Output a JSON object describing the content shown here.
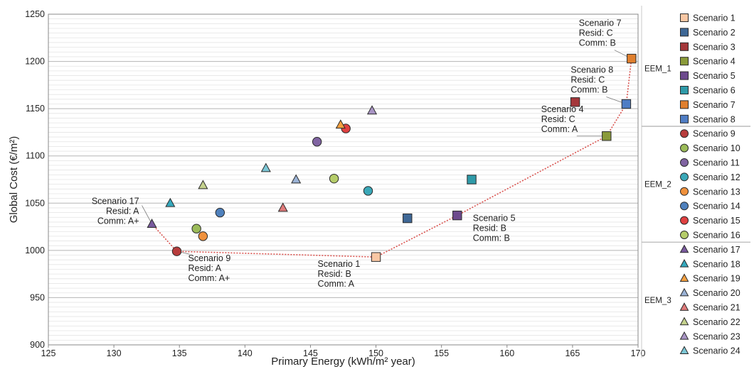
{
  "chart_data": {
    "type": "scatter",
    "xlabel": "Primary Energy (kWh/m² year)",
    "ylabel": "Global Cost (€/m²)",
    "xlim": [
      125,
      170
    ],
    "ylim": [
      900,
      1250
    ],
    "x_ticks": [
      125,
      130,
      135,
      140,
      145,
      150,
      155,
      160,
      165,
      170
    ],
    "y_ticks": [
      900,
      950,
      1000,
      1050,
      1100,
      1150,
      1200,
      1250
    ],
    "grid": true,
    "legend_position": "right",
    "series": [
      {
        "name": "Scenario  1",
        "group": "EEM_1",
        "marker": "square",
        "color": "#f9c7a4",
        "x": 150.0,
        "y": 993
      },
      {
        "name": "Scenario  2",
        "group": "EEM_1",
        "marker": "square",
        "color": "#3f6896",
        "x": 152.4,
        "y": 1034
      },
      {
        "name": "Scenario  3",
        "group": "EEM_1",
        "marker": "square",
        "color": "#a4373a",
        "x": 165.2,
        "y": 1157
      },
      {
        "name": "Scenario  4",
        "group": "EEM_1",
        "marker": "square",
        "color": "#8a9a3a",
        "x": 167.6,
        "y": 1121
      },
      {
        "name": "Scenario  5",
        "group": "EEM_1",
        "marker": "square",
        "color": "#6d4a8d",
        "x": 156.2,
        "y": 1037
      },
      {
        "name": "Scenario  6",
        "group": "EEM_1",
        "marker": "square",
        "color": "#2f9aa8",
        "x": 157.3,
        "y": 1075
      },
      {
        "name": "Scenario  7",
        "group": "EEM_1",
        "marker": "square",
        "color": "#e07f2e",
        "x": 169.5,
        "y": 1203
      },
      {
        "name": "Scenario  8",
        "group": "EEM_1",
        "marker": "square",
        "color": "#4f7dc4",
        "x": 169.1,
        "y": 1155
      },
      {
        "name": "Scenario  9",
        "group": "EEM_2",
        "marker": "circle",
        "color": "#b73c3c",
        "x": 134.8,
        "y": 999
      },
      {
        "name": "Scenario  10",
        "group": "EEM_2",
        "marker": "circle",
        "color": "#9bbb59",
        "x": 136.3,
        "y": 1023
      },
      {
        "name": "Scenario  11",
        "group": "EEM_2",
        "marker": "circle",
        "color": "#8064a2",
        "x": 145.5,
        "y": 1115
      },
      {
        "name": "Scenario  12",
        "group": "EEM_2",
        "marker": "circle",
        "color": "#3aa8b8",
        "x": 149.4,
        "y": 1063
      },
      {
        "name": "Scenario  13",
        "group": "EEM_2",
        "marker": "circle",
        "color": "#f0913c",
        "x": 136.8,
        "y": 1015
      },
      {
        "name": "Scenario  14",
        "group": "EEM_2",
        "marker": "circle",
        "color": "#4f81bd",
        "x": 138.1,
        "y": 1040
      },
      {
        "name": "Scenario  15",
        "group": "EEM_2",
        "marker": "circle",
        "color": "#e04040",
        "x": 147.7,
        "y": 1129
      },
      {
        "name": "Scenario  16",
        "group": "EEM_2",
        "marker": "circle",
        "color": "#b5cc6a",
        "x": 146.8,
        "y": 1076
      },
      {
        "name": "Scenario  17",
        "group": "EEM_3",
        "marker": "triangle",
        "color": "#7a5a9e",
        "x": 132.9,
        "y": 1028
      },
      {
        "name": "Scenario  18",
        "group": "EEM_3",
        "marker": "triangle",
        "color": "#34a9be",
        "x": 134.3,
        "y": 1050
      },
      {
        "name": "Scenario  19",
        "group": "EEM_3",
        "marker": "triangle",
        "color": "#f4a040",
        "x": 147.3,
        "y": 1133
      },
      {
        "name": "Scenario  20",
        "group": "EEM_3",
        "marker": "triangle",
        "color": "#9bb3d6",
        "x": 143.9,
        "y": 1075
      },
      {
        "name": "Scenario  21",
        "group": "EEM_3",
        "marker": "triangle",
        "color": "#e07a7a",
        "x": 142.9,
        "y": 1045
      },
      {
        "name": "Scenario  22",
        "group": "EEM_3",
        "marker": "triangle",
        "color": "#c5d28e",
        "x": 136.8,
        "y": 1069
      },
      {
        "name": "Scenario  23",
        "group": "EEM_3",
        "marker": "triangle",
        "color": "#a995c5",
        "x": 149.7,
        "y": 1148
      },
      {
        "name": "Scenario  24",
        "group": "EEM_3",
        "marker": "triangle",
        "color": "#7cc7d6",
        "x": 141.6,
        "y": 1087
      }
    ],
    "pareto_front": [
      {
        "x": 132.9,
        "y": 1028
      },
      {
        "x": 134.8,
        "y": 999
      },
      {
        "x": 150.0,
        "y": 993
      },
      {
        "x": 156.2,
        "y": 1037
      },
      {
        "x": 167.6,
        "y": 1121
      },
      {
        "x": 169.1,
        "y": 1155
      },
      {
        "x": 169.5,
        "y": 1203
      }
    ],
    "annotations": [
      {
        "lines": [
          "Scenario 17",
          "Resid: A",
          "Comm: A+"
        ],
        "x": 132.9,
        "y": 1028,
        "anchor": "end"
      },
      {
        "lines": [
          "Scenario 9",
          "Resid: A",
          "Comm: A+"
        ],
        "x": 134.8,
        "y": 999,
        "anchor": "start"
      },
      {
        "lines": [
          "Scenario 1",
          "Resid: B",
          "Comm: A"
        ],
        "x": 150.0,
        "y": 993,
        "anchor": "start"
      },
      {
        "lines": [
          "Scenario 5",
          "Resid: B",
          "Comm: B"
        ],
        "x": 156.2,
        "y": 1037,
        "anchor": "start"
      },
      {
        "lines": [
          "Scenario 4",
          "Resid: C",
          "Comm: A"
        ],
        "x": 167.6,
        "y": 1121,
        "anchor": "start"
      },
      {
        "lines": [
          "Scenario 8",
          "Resid: C",
          "Comm: B"
        ],
        "x": 169.1,
        "y": 1155,
        "anchor": "start"
      },
      {
        "lines": [
          "Scenario 7",
          "Resid: C",
          "Comm: B"
        ],
        "x": 169.5,
        "y": 1203,
        "anchor": "start"
      }
    ],
    "legend_groups": [
      "EEM_1",
      "EEM_2",
      "EEM_3"
    ]
  }
}
